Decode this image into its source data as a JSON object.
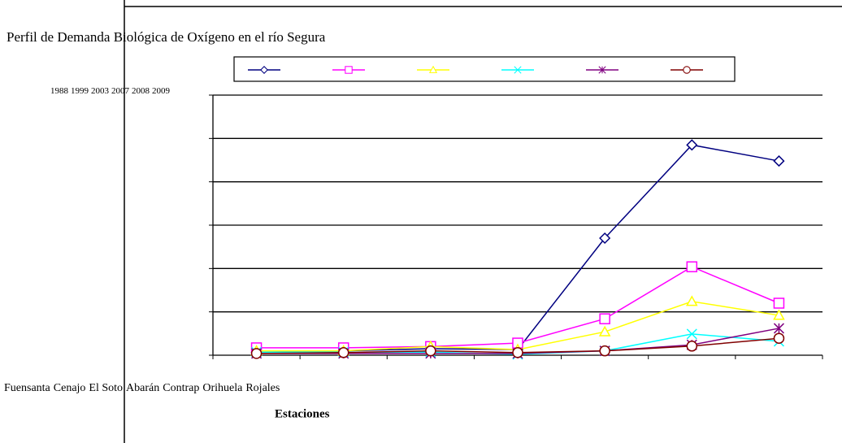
{
  "chart_data": {
    "type": "line",
    "title": "Perfil de Demanda Biológica de Oxígeno en el río Segura",
    "x_label": "Estaciones",
    "categories": [
      "Fuensanta",
      "Cenajo",
      "El Soto",
      "Abarán",
      "Contrap",
      "Orihuela",
      "Rojales"
    ],
    "ylim": [
      0,
      6
    ],
    "yticks": [
      0,
      1,
      2,
      3,
      4,
      5,
      6
    ],
    "grid": true,
    "series": [
      {
        "name": "1988",
        "color": "#000080",
        "marker": "diamond",
        "values": [
          0.07,
          0.1,
          0.15,
          0.13,
          2.7,
          4.85,
          4.48
        ]
      },
      {
        "name": "1999",
        "color": "#ff00ff",
        "marker": "square",
        "values": [
          0.17,
          0.17,
          0.2,
          0.28,
          0.84,
          2.04,
          1.2
        ]
      },
      {
        "name": "2003",
        "color": "#ffff00",
        "marker": "triangle",
        "values": [
          0.1,
          0.1,
          0.2,
          0.13,
          0.54,
          1.24,
          0.92
        ]
      },
      {
        "name": "2007",
        "color": "#00ffff",
        "marker": "x",
        "values": [
          0.07,
          0.07,
          0.07,
          0.02,
          0.1,
          0.49,
          0.32
        ]
      },
      {
        "name": "2008",
        "color": "#800080",
        "marker": "star",
        "values": [
          0.04,
          0.04,
          0.04,
          0.04,
          0.1,
          0.24,
          0.62
        ]
      },
      {
        "name": "2009",
        "color": "#800000",
        "marker": "circle",
        "values": [
          0.04,
          0.06,
          0.1,
          0.06,
          0.1,
          0.21,
          0.39
        ]
      }
    ]
  }
}
